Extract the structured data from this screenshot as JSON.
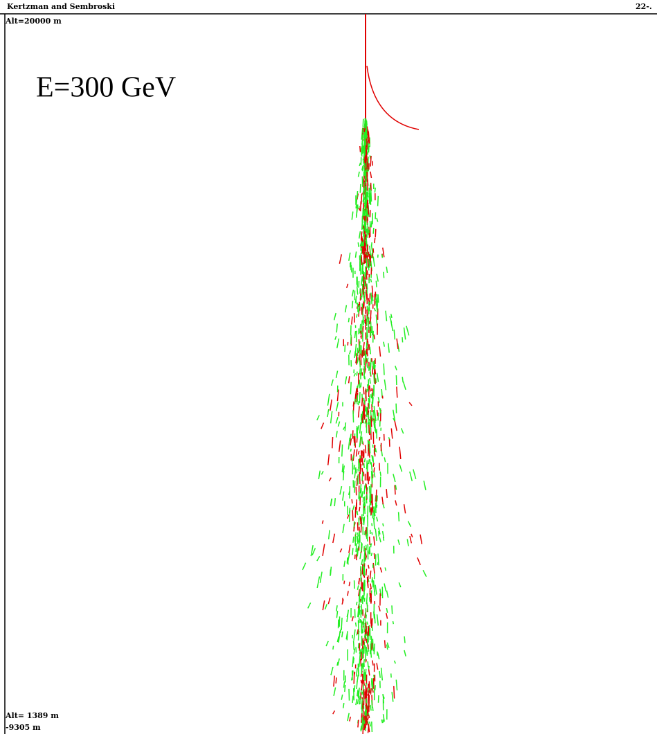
{
  "header": {
    "authors": "Kertzman and Sembroski",
    "date": "22-."
  },
  "labels": {
    "top_altitude": "Alt=20000 m",
    "energy": "E=300 GeV",
    "bottom_altitude": "Alt= 1389 m",
    "bottom_offset": "-9305 m"
  }
}
